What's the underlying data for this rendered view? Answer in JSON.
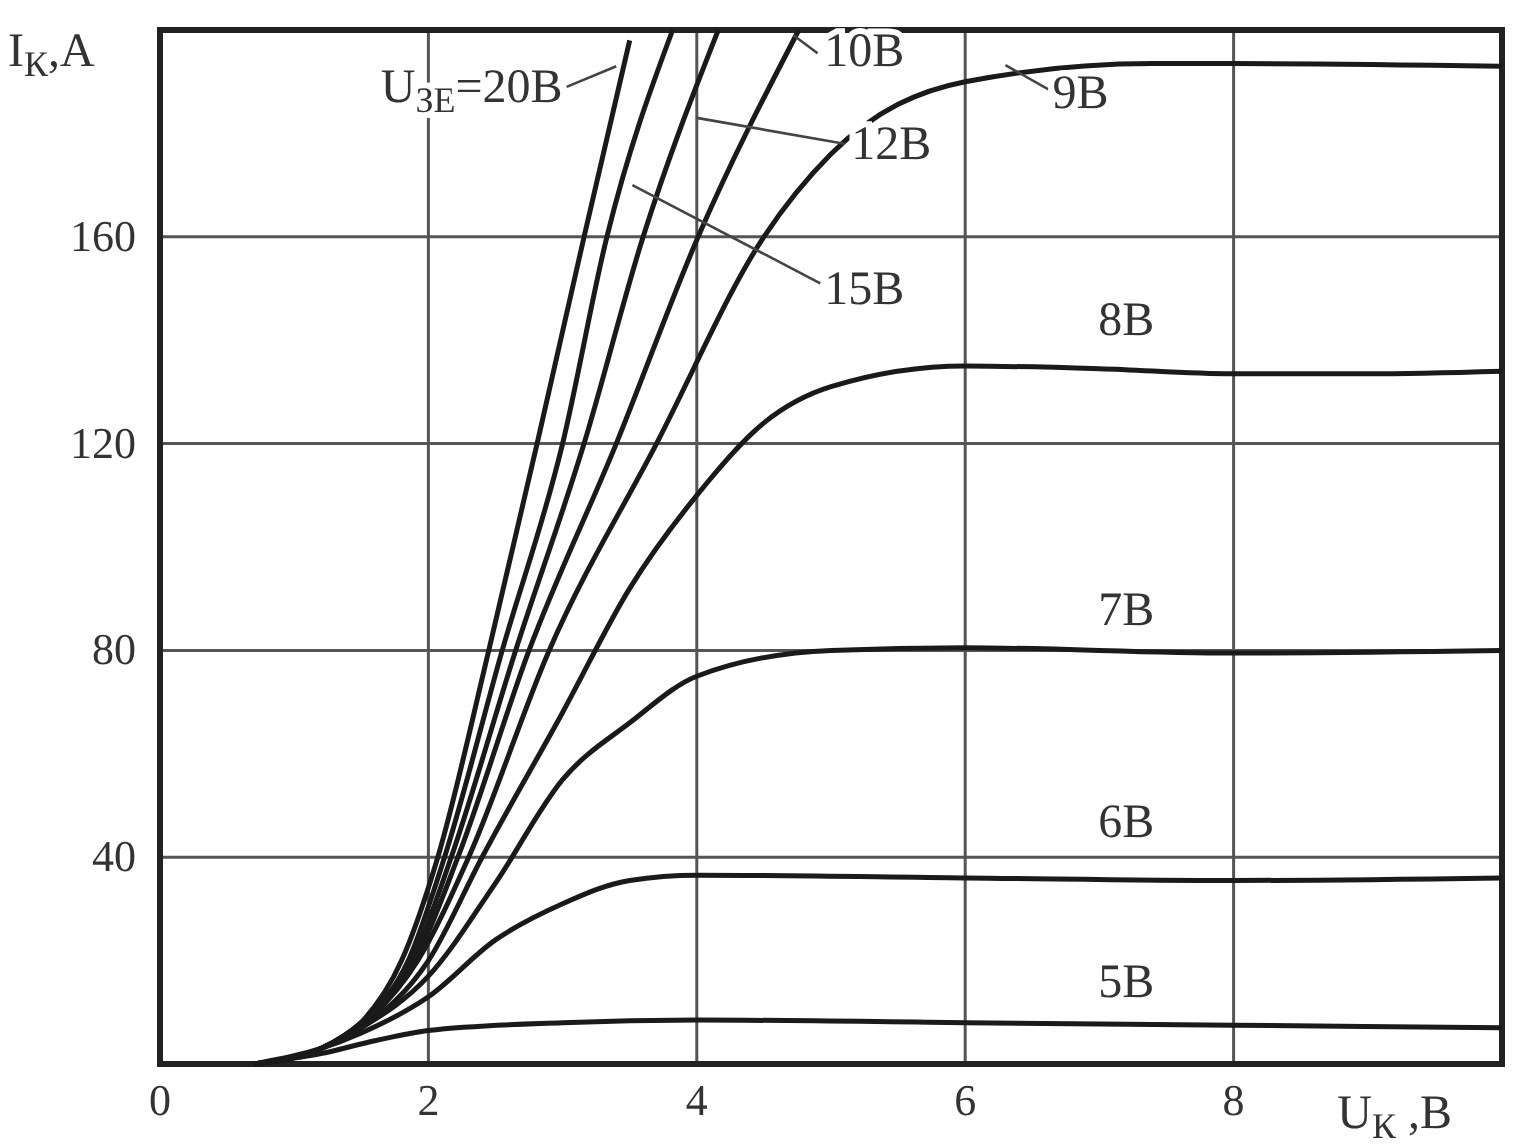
{
  "chart_data": {
    "type": "line",
    "xlabel": "U$_{К}$ ,В",
    "ylabel": "I$_{К}$,А",
    "xlim": [
      0,
      10
    ],
    "ylim": [
      0,
      200
    ],
    "xticks": [
      0,
      2,
      4,
      6,
      8
    ],
    "yticks": [
      40,
      80,
      120,
      160
    ],
    "grid": true,
    "marker": "none",
    "line_style": "solid",
    "series": [
      {
        "name": "U$_{ЗЕ}$=20В",
        "color": "#1a1a1a",
        "x": [
          0.7,
          1.2,
          1.5,
          1.8,
          2.07,
          2.45,
          2.81,
          3.16,
          3.5
        ],
        "values": [
          0,
          3,
          8,
          20,
          40,
          80,
          120,
          160,
          198
        ]
      },
      {
        "name": "15В",
        "color": "#1a1a1a",
        "x": [
          0.7,
          1.2,
          1.5,
          1.85,
          2.12,
          2.55,
          3.0,
          3.33,
          3.82
        ],
        "values": [
          0,
          3,
          8,
          20,
          40,
          80,
          120,
          160,
          200
        ]
      },
      {
        "name": "12В",
        "color": "#1a1a1a",
        "x": [
          0.7,
          1.2,
          1.5,
          1.88,
          2.17,
          2.65,
          3.16,
          3.6,
          4.16
        ],
        "values": [
          0,
          3,
          8,
          20,
          40,
          80,
          120,
          160,
          200
        ]
      },
      {
        "name": "10В",
        "color": "#1a1a1a",
        "x": [
          0.7,
          1.2,
          1.5,
          1.9,
          2.22,
          2.75,
          3.4,
          4.01,
          4.76
        ],
        "values": [
          0,
          3,
          8,
          20,
          40,
          80,
          120,
          160,
          200
        ]
      },
      {
        "name": "9В",
        "color": "#1a1a1a",
        "x": [
          0.7,
          1.2,
          1.5,
          1.92,
          2.3,
          2.9,
          3.7,
          4.5,
          5.0,
          6.0,
          7.4,
          8.0,
          10.0
        ],
        "values": [
          0,
          3,
          7.5,
          20,
          40,
          80,
          120,
          160,
          176,
          190,
          193.5,
          193.5,
          193
        ]
      },
      {
        "name": "8В",
        "color": "#1a1a1a",
        "x": [
          0.7,
          1.2,
          1.5,
          2.0,
          2.4,
          3.0,
          3.5,
          4.0,
          4.5,
          5.0,
          6.0,
          7.0,
          8.0,
          9.0,
          10.0
        ],
        "values": [
          0,
          3,
          7,
          20,
          40,
          68,
          92,
          110,
          124,
          131,
          135,
          134.5,
          133.5,
          133.5,
          134
        ]
      },
      {
        "name": "7В",
        "color": "#1a1a1a",
        "x": [
          0.7,
          1.2,
          1.5,
          2.0,
          2.5,
          3.0,
          3.5,
          4.0,
          5.0,
          6.0,
          8.0,
          10.0
        ],
        "values": [
          0,
          3,
          7,
          17,
          35,
          55,
          66,
          75,
          80,
          80.5,
          79.5,
          80
        ]
      },
      {
        "name": "6В",
        "color": "#1a1a1a",
        "x": [
          0.7,
          1.2,
          1.5,
          2.0,
          2.5,
          3.0,
          3.5,
          4.0,
          6.0,
          8.0,
          10.0
        ],
        "values": [
          0,
          3,
          6,
          13,
          24,
          31,
          35.5,
          36.5,
          36,
          35.5,
          36
        ]
      },
      {
        "name": "5В",
        "color": "#1a1a1a",
        "x": [
          0.7,
          1.2,
          1.6,
          2.0,
          3.0,
          4.0,
          6.0,
          8.0,
          10.0
        ],
        "values": [
          0,
          2,
          4.5,
          6.5,
          8,
          8.5,
          8,
          7.5,
          7
        ]
      }
    ]
  }
}
